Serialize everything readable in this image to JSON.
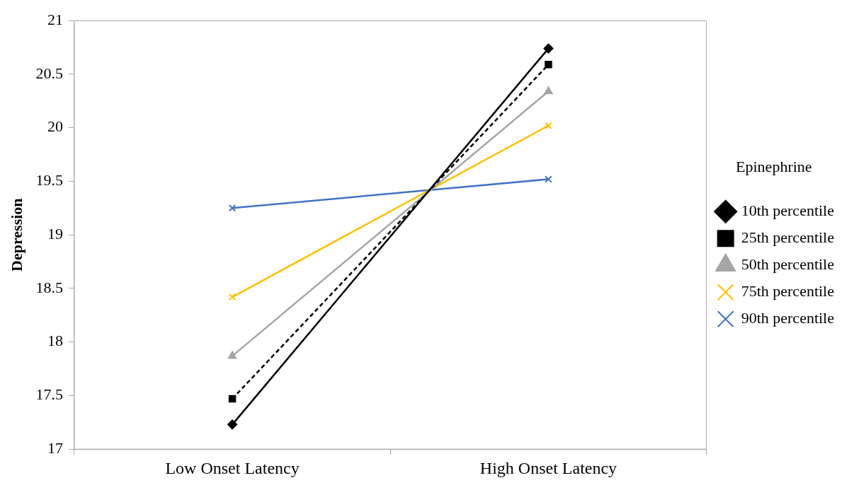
{
  "chart_data": {
    "type": "line",
    "ylabel": "Depression",
    "legend_title": "Epinephrine",
    "categories": [
      "Low Onset Latency",
      "High Onset Latency"
    ],
    "series": [
      {
        "name": "10th percentile",
        "color": "#000000",
        "values": [
          17.23,
          20.74
        ],
        "marker": "diamond",
        "line_style": "solid"
      },
      {
        "name": "25th percentile",
        "color": "#000000",
        "values": [
          17.47,
          20.59
        ],
        "marker": "square",
        "line_style": "dashed"
      },
      {
        "name": "50th percentile",
        "color": "#a5a5a5",
        "values": [
          17.87,
          20.34
        ],
        "marker": "triangle",
        "line_style": "solid"
      },
      {
        "name": "75th percentile",
        "color": "#ffc000",
        "values": [
          18.42,
          20.02
        ],
        "marker": "cross",
        "line_style": "solid"
      },
      {
        "name": "90th percentile",
        "color": "#4472c4",
        "values": [
          19.25,
          19.52
        ],
        "marker": "cross",
        "line_style": "solid"
      }
    ],
    "ylim": [
      17,
      21
    ],
    "yticks": [
      17,
      17.5,
      18,
      18.5,
      19,
      19.5,
      20,
      20.5,
      21
    ],
    "grid": false,
    "legend": "right"
  }
}
